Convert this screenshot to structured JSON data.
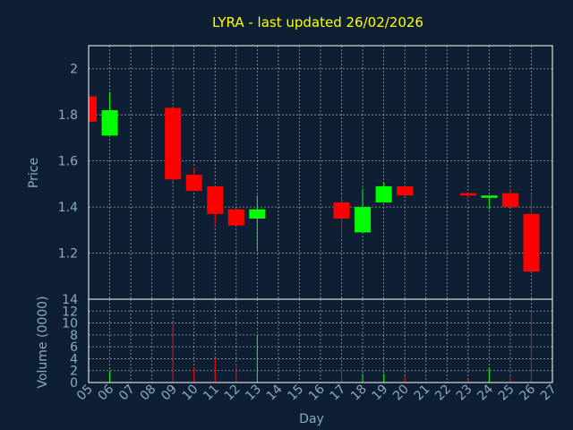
{
  "chart_data": {
    "type": "candlestick",
    "title": "LYRA - last updated 26/02/2026",
    "xlabel": "Day",
    "price_ylabel": "Price",
    "volume_ylabel": "Volume (0000)",
    "x_ticks": [
      "05",
      "06",
      "07",
      "08",
      "09",
      "10",
      "11",
      "12",
      "13",
      "14",
      "15",
      "16",
      "17",
      "18",
      "19",
      "20",
      "21",
      "22",
      "23",
      "24",
      "25",
      "26",
      "27"
    ],
    "price_ylim": [
      1.0,
      2.1
    ],
    "price_yticks": [
      "1.2",
      "1.4",
      "1.6",
      "1.8",
      "2"
    ],
    "volume_ylim": [
      0,
      14
    ],
    "volume_yticks": [
      "0",
      "2",
      "4",
      "6",
      "8",
      "10",
      "12",
      "14"
    ],
    "grid": true,
    "colors": {
      "up": "#00ff00",
      "down": "#ff0000",
      "title": "#ffff00",
      "axis_text": "#8aa9c8",
      "background": "#0f1f33"
    },
    "candles": [
      {
        "day": "05",
        "open": 1.88,
        "high": 1.88,
        "low": 1.77,
        "close": 1.77,
        "volume": 0
      },
      {
        "day": "06",
        "open": 1.71,
        "high": 1.9,
        "low": 1.71,
        "close": 1.82,
        "volume": 2
      },
      {
        "day": "09",
        "open": 1.83,
        "high": 1.83,
        "low": 1.51,
        "close": 1.52,
        "volume": 10
      },
      {
        "day": "10",
        "open": 1.54,
        "high": 1.57,
        "low": 1.47,
        "close": 1.47,
        "volume": 2.5
      },
      {
        "day": "11",
        "open": 1.49,
        "high": 1.49,
        "low": 1.32,
        "close": 1.37,
        "volume": 4
      },
      {
        "day": "12",
        "open": 1.39,
        "high": 1.39,
        "low": 1.32,
        "close": 1.32,
        "volume": 3
      },
      {
        "day": "13",
        "open": 1.35,
        "high": 1.45,
        "low": 1.21,
        "close": 1.39,
        "volume": 8
      },
      {
        "day": "17",
        "open": 1.42,
        "high": 1.45,
        "low": 1.27,
        "close": 1.35,
        "volume": 2
      },
      {
        "day": "18",
        "open": 1.29,
        "high": 1.48,
        "low": 1.29,
        "close": 1.4,
        "volume": 1.5
      },
      {
        "day": "19",
        "open": 1.42,
        "high": 1.51,
        "low": 1.42,
        "close": 1.49,
        "volume": 1.5
      },
      {
        "day": "20",
        "open": 1.49,
        "high": 1.49,
        "low": 1.45,
        "close": 1.45,
        "volume": 1
      },
      {
        "day": "23",
        "open": 1.46,
        "high": 1.46,
        "low": 1.44,
        "close": 1.45,
        "volume": 0.5
      },
      {
        "day": "24",
        "open": 1.44,
        "high": 1.45,
        "low": 1.39,
        "close": 1.45,
        "volume": 2.5
      },
      {
        "day": "25",
        "open": 1.46,
        "high": 1.48,
        "low": 1.4,
        "close": 1.4,
        "volume": 1
      },
      {
        "day": "26",
        "open": 1.37,
        "high": 1.46,
        "low": 1.12,
        "close": 1.12,
        "volume": 12
      }
    ]
  }
}
